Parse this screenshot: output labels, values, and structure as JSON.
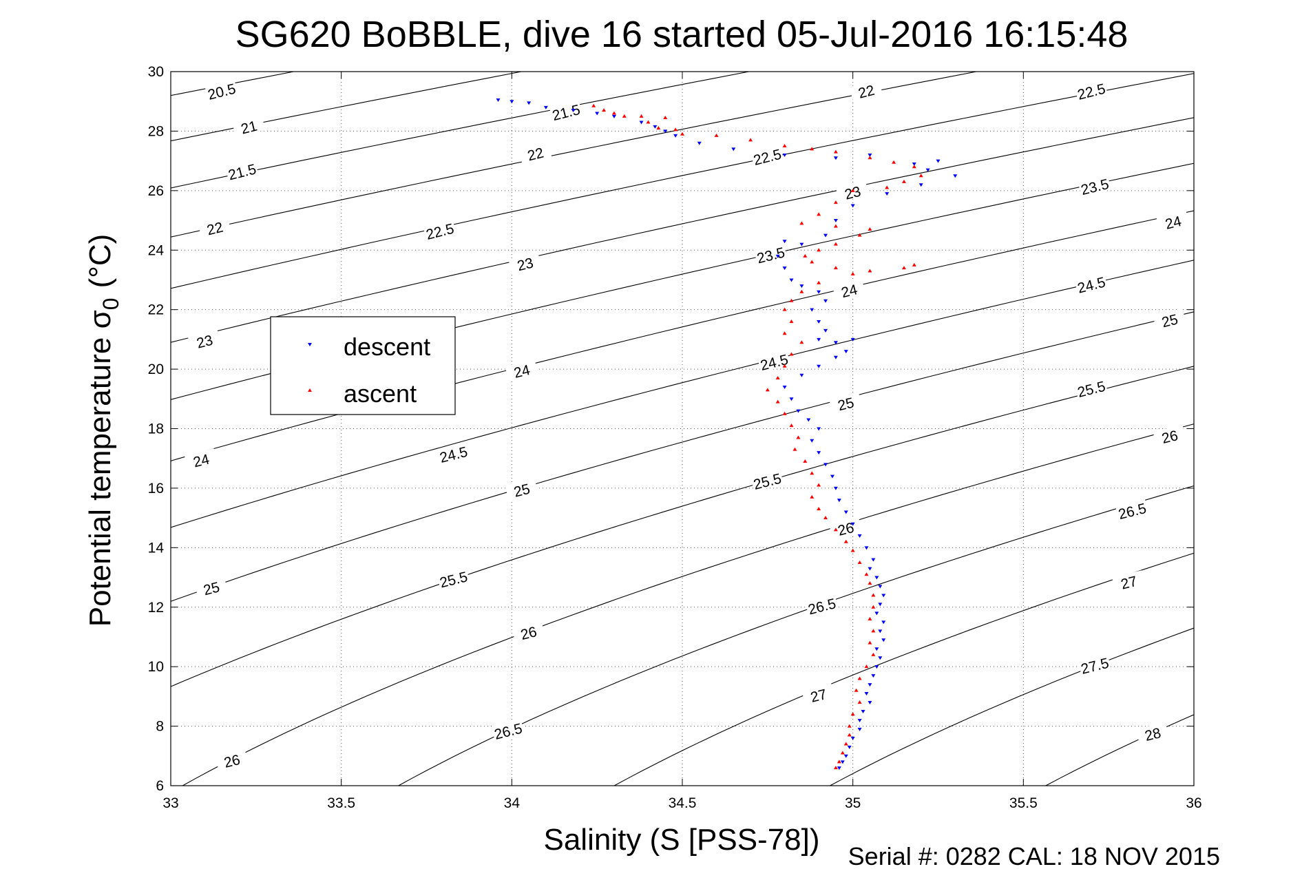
{
  "chart_data": {
    "type": "scatter",
    "title": "SG620 BoBBLE, dive 16 started 05-Jul-2016 16:15:48",
    "xlabel": "Salinity (S [PSS-78])",
    "ylabel_main": "Potential temperature σ",
    "ylabel_sub": "0",
    "ylabel_unit": "(°C)",
    "xlim": [
      33,
      36
    ],
    "ylim": [
      6,
      30
    ],
    "xticks": [
      33,
      33.5,
      34,
      34.5,
      35,
      35.5,
      36
    ],
    "yticks": [
      6,
      8,
      10,
      12,
      14,
      16,
      18,
      20,
      22,
      24,
      26,
      28,
      30
    ],
    "grid": "dotted",
    "legend_position": "left",
    "footer": "Serial #: 0282  CAL: 18 NOV 2015",
    "contour_levels": [
      20.5,
      21,
      21.5,
      22,
      22.5,
      23,
      23.5,
      24,
      24.5,
      25,
      25.5,
      26,
      26.5,
      27,
      27.5,
      28
    ],
    "contour_label_texts": {
      "20.5": "20.5",
      "21": "21",
      "21.5": "21.5",
      "22": "22",
      "22.5": "22.5",
      "23": "23",
      "23.5": "23.5",
      "24": "24",
      "24.5": "24.5",
      "25": "25",
      "25.5": "25.5",
      "26": "26",
      "26.5": "26.5",
      "27": "27",
      "27.5": "27.5",
      "28": "28"
    },
    "contour_labels": [
      {
        "text": "20.5",
        "s": 33.15,
        "t": 29.3
      },
      {
        "text": "21",
        "s": 33.23,
        "t": 28.1
      },
      {
        "text": "21.5",
        "s": 33.21,
        "t": 26.6
      },
      {
        "text": "22",
        "s": 33.13,
        "t": 24.7
      },
      {
        "text": "23",
        "s": 33.1,
        "t": 20.9
      },
      {
        "text": "24",
        "s": 33.09,
        "t": 16.9
      },
      {
        "text": "25",
        "s": 33.12,
        "t": 12.6
      },
      {
        "text": "26",
        "s": 33.18,
        "t": 6.8
      },
      {
        "text": "21.5",
        "s": 34.16,
        "t": 28.6
      },
      {
        "text": "22",
        "s": 34.07,
        "t": 27.2
      },
      {
        "text": "22.5",
        "s": 33.79,
        "t": 24.6
      },
      {
        "text": "23",
        "s": 34.04,
        "t": 23.5
      },
      {
        "text": "24",
        "s": 34.03,
        "t": 19.9
      },
      {
        "text": "24.5",
        "s": 33.83,
        "t": 17.1
      },
      {
        "text": "25",
        "s": 34.03,
        "t": 15.9
      },
      {
        "text": "25.5",
        "s": 33.83,
        "t": 12.9
      },
      {
        "text": "26",
        "s": 34.05,
        "t": 11.1
      },
      {
        "text": "26.5",
        "s": 33.99,
        "t": 7.8
      },
      {
        "text": "22.5",
        "s": 34.75,
        "t": 27.1
      },
      {
        "text": "23.5",
        "s": 34.76,
        "t": 23.8
      },
      {
        "text": "24.5",
        "s": 34.77,
        "t": 20.2
      },
      {
        "text": "25.5",
        "s": 34.75,
        "t": 16.2
      },
      {
        "text": "26.5",
        "s": 34.91,
        "t": 12.0
      },
      {
        "text": "27",
        "s": 34.9,
        "t": 9.0
      },
      {
        "text": "22",
        "s": 35.04,
        "t": 29.3
      },
      {
        "text": "23",
        "s": 35.0,
        "t": 25.9
      },
      {
        "text": "24",
        "s": 34.99,
        "t": 22.6
      },
      {
        "text": "25",
        "s": 34.98,
        "t": 18.8
      },
      {
        "text": "26",
        "s": 34.98,
        "t": 14.6
      },
      {
        "text": "22.5",
        "s": 35.7,
        "t": 29.3
      },
      {
        "text": "23.5",
        "s": 35.71,
        "t": 26.1
      },
      {
        "text": "24.5",
        "s": 35.7,
        "t": 22.8
      },
      {
        "text": "25.5",
        "s": 35.7,
        "t": 19.3
      },
      {
        "text": "26.5",
        "s": 35.82,
        "t": 15.2
      },
      {
        "text": "27.5",
        "s": 35.71,
        "t": 10.0
      },
      {
        "text": "24",
        "s": 35.94,
        "t": 24.9
      },
      {
        "text": "25",
        "s": 35.93,
        "t": 21.6
      },
      {
        "text": "26",
        "s": 35.93,
        "t": 17.7
      },
      {
        "text": "27",
        "s": 35.81,
        "t": 12.8
      },
      {
        "text": "28",
        "s": 35.88,
        "t": 7.7
      }
    ],
    "series": [
      {
        "name": "descent",
        "color": "#0000ff",
        "marker": "triangle-down",
        "points": [
          [
            33.96,
            29.05
          ],
          [
            34.0,
            29.0
          ],
          [
            34.05,
            28.95
          ],
          [
            34.1,
            28.8
          ],
          [
            34.18,
            28.7
          ],
          [
            34.25,
            28.6
          ],
          [
            34.3,
            28.5
          ],
          [
            34.38,
            28.3
          ],
          [
            34.42,
            28.15
          ],
          [
            34.45,
            28.0
          ],
          [
            34.48,
            27.85
          ],
          [
            34.55,
            27.6
          ],
          [
            34.65,
            27.4
          ],
          [
            34.8,
            27.2
          ],
          [
            34.95,
            27.1
          ],
          [
            35.05,
            27.2
          ],
          [
            35.18,
            26.9
          ],
          [
            35.22,
            26.7
          ],
          [
            35.25,
            27.0
          ],
          [
            35.3,
            26.5
          ],
          [
            35.2,
            26.2
          ],
          [
            35.1,
            25.9
          ],
          [
            35.0,
            25.5
          ],
          [
            34.95,
            25.0
          ],
          [
            34.92,
            24.5
          ],
          [
            34.85,
            24.2
          ],
          [
            34.8,
            24.3
          ],
          [
            34.78,
            23.8
          ],
          [
            34.8,
            23.4
          ],
          [
            34.82,
            23.0
          ],
          [
            34.85,
            22.8
          ],
          [
            34.9,
            22.6
          ],
          [
            34.92,
            22.3
          ],
          [
            34.88,
            22.0
          ],
          [
            34.9,
            21.6
          ],
          [
            34.92,
            21.3
          ],
          [
            34.9,
            21.0
          ],
          [
            34.95,
            20.9
          ],
          [
            35.0,
            21.0
          ],
          [
            34.98,
            20.6
          ],
          [
            34.95,
            20.4
          ],
          [
            34.9,
            20.1
          ],
          [
            34.85,
            19.8
          ],
          [
            34.8,
            19.4
          ],
          [
            34.82,
            19.0
          ],
          [
            34.84,
            18.6
          ],
          [
            34.87,
            18.3
          ],
          [
            34.9,
            18.0
          ],
          [
            34.88,
            17.6
          ],
          [
            34.9,
            17.2
          ],
          [
            34.92,
            16.8
          ],
          [
            34.94,
            16.4
          ],
          [
            34.95,
            16.0
          ],
          [
            34.96,
            15.6
          ],
          [
            34.98,
            15.2
          ],
          [
            35.0,
            14.8
          ],
          [
            35.02,
            14.4
          ],
          [
            35.04,
            14.0
          ],
          [
            35.06,
            13.6
          ],
          [
            35.05,
            13.3
          ],
          [
            35.07,
            13.0
          ],
          [
            35.08,
            12.7
          ],
          [
            35.09,
            12.4
          ],
          [
            35.08,
            12.1
          ],
          [
            35.07,
            11.8
          ],
          [
            35.09,
            11.5
          ],
          [
            35.08,
            11.2
          ],
          [
            35.09,
            10.9
          ],
          [
            35.07,
            10.6
          ],
          [
            35.08,
            10.3
          ],
          [
            35.07,
            10.0
          ],
          [
            35.06,
            9.7
          ],
          [
            35.05,
            9.4
          ],
          [
            35.04,
            9.1
          ],
          [
            35.05,
            8.8
          ],
          [
            35.03,
            8.5
          ],
          [
            35.02,
            8.2
          ],
          [
            35.02,
            7.9
          ],
          [
            35.0,
            7.6
          ],
          [
            34.99,
            7.3
          ],
          [
            34.98,
            7.0
          ],
          [
            34.97,
            6.8
          ],
          [
            34.96,
            6.6
          ]
        ]
      },
      {
        "name": "ascent",
        "color": "#ff0000",
        "marker": "triangle-up",
        "points": [
          [
            34.24,
            28.85
          ],
          [
            34.27,
            28.7
          ],
          [
            34.3,
            28.6
          ],
          [
            34.33,
            28.5
          ],
          [
            34.38,
            28.5
          ],
          [
            34.45,
            28.45
          ],
          [
            34.4,
            28.3
          ],
          [
            34.43,
            28.1
          ],
          [
            34.48,
            28.05
          ],
          [
            34.5,
            27.9
          ],
          [
            34.6,
            27.85
          ],
          [
            34.7,
            27.7
          ],
          [
            34.8,
            27.5
          ],
          [
            34.88,
            27.4
          ],
          [
            34.95,
            27.3
          ],
          [
            35.05,
            27.1
          ],
          [
            35.12,
            26.95
          ],
          [
            35.18,
            26.8
          ],
          [
            35.2,
            26.5
          ],
          [
            35.15,
            26.3
          ],
          [
            35.1,
            26.1
          ],
          [
            35.0,
            26.0
          ],
          [
            34.95,
            25.6
          ],
          [
            34.9,
            25.2
          ],
          [
            34.85,
            24.9
          ],
          [
            34.95,
            24.8
          ],
          [
            35.05,
            24.7
          ],
          [
            35.02,
            24.5
          ],
          [
            34.95,
            24.2
          ],
          [
            34.9,
            24.0
          ],
          [
            34.86,
            23.8
          ],
          [
            34.88,
            23.6
          ],
          [
            34.95,
            23.4
          ],
          [
            35.05,
            23.3
          ],
          [
            35.15,
            23.4
          ],
          [
            35.18,
            23.5
          ],
          [
            35.0,
            23.2
          ],
          [
            34.9,
            22.9
          ],
          [
            34.85,
            22.6
          ],
          [
            34.82,
            22.3
          ],
          [
            34.8,
            22.0
          ],
          [
            34.82,
            21.6
          ],
          [
            34.8,
            21.2
          ],
          [
            34.85,
            20.9
          ],
          [
            34.82,
            20.5
          ],
          [
            34.8,
            20.1
          ],
          [
            34.78,
            19.7
          ],
          [
            34.75,
            19.3
          ],
          [
            34.78,
            18.9
          ],
          [
            34.8,
            18.5
          ],
          [
            34.82,
            18.1
          ],
          [
            34.84,
            17.7
          ],
          [
            34.83,
            17.3
          ],
          [
            34.86,
            16.9
          ],
          [
            34.88,
            16.5
          ],
          [
            34.9,
            16.1
          ],
          [
            34.88,
            15.7
          ],
          [
            34.9,
            15.3
          ],
          [
            34.92,
            15.0
          ],
          [
            34.95,
            14.6
          ],
          [
            34.98,
            14.2
          ],
          [
            35.0,
            13.9
          ],
          [
            35.02,
            13.5
          ],
          [
            35.04,
            13.1
          ],
          [
            35.05,
            12.8
          ],
          [
            35.06,
            12.4
          ],
          [
            35.06,
            12.0
          ],
          [
            35.05,
            11.6
          ],
          [
            35.06,
            11.2
          ],
          [
            35.05,
            10.8
          ],
          [
            35.06,
            10.4
          ],
          [
            35.04,
            10.0
          ],
          [
            35.02,
            9.6
          ],
          [
            35.01,
            9.2
          ],
          [
            35.02,
            8.8
          ],
          [
            35.0,
            8.4
          ],
          [
            34.99,
            8.0
          ],
          [
            34.99,
            7.7
          ],
          [
            34.98,
            7.4
          ],
          [
            34.97,
            7.1
          ],
          [
            34.96,
            6.8
          ],
          [
            34.95,
            6.6
          ]
        ]
      }
    ]
  }
}
